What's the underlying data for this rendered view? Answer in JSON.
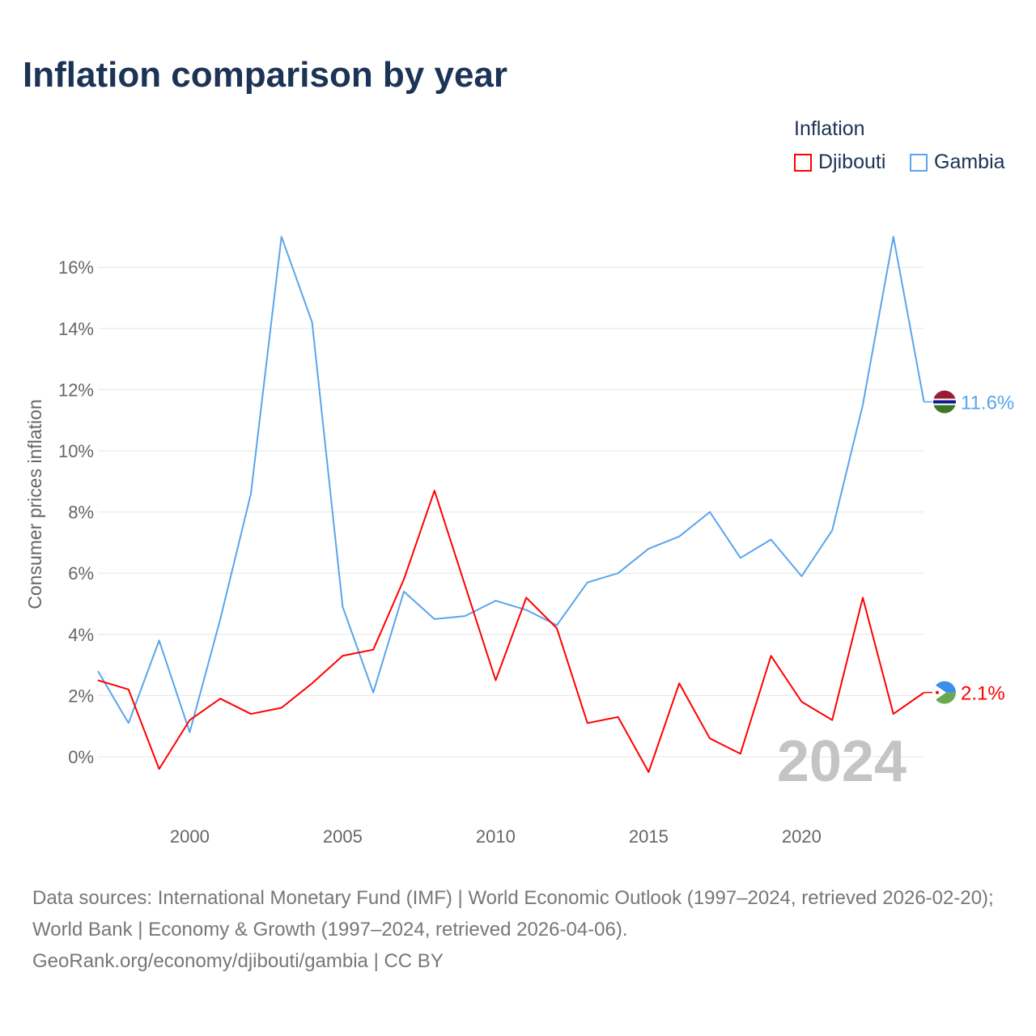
{
  "title": "Inflation comparison by year",
  "legend": {
    "title": "Inflation",
    "items": [
      {
        "name": "Djibouti",
        "color": "#ff0000"
      },
      {
        "name": "Gambia",
        "color": "#5aa5ec"
      }
    ]
  },
  "year_label": "2024",
  "end_labels": {
    "Gambia": "11.6%",
    "Djibouti": "2.1%"
  },
  "footer": {
    "sources": "Data sources: International Monetary Fund (IMF) | World Economic Outlook (1997–2024, retrieved 2026-02-20); World Bank | Economy & Growth (1997–2024, retrieved 2026-04-06).",
    "credit": "GeoRank.org/economy/djibouti/gambia | CC BY"
  },
  "chart_data": {
    "type": "line",
    "title": "Inflation comparison by year",
    "xlabel": "",
    "ylabel": "Consumer prices inflation",
    "x": [
      1997,
      1998,
      1999,
      2000,
      2001,
      2002,
      2003,
      2004,
      2005,
      2006,
      2007,
      2008,
      2009,
      2010,
      2011,
      2012,
      2013,
      2014,
      2015,
      2016,
      2017,
      2018,
      2019,
      2020,
      2021,
      2022,
      2023,
      2024
    ],
    "xticks": [
      2000,
      2005,
      2010,
      2015,
      2020
    ],
    "yticks": [
      0,
      2,
      4,
      6,
      8,
      10,
      12,
      14,
      16
    ],
    "ytick_labels": [
      "0%",
      "2%",
      "4%",
      "6%",
      "8%",
      "10%",
      "12%",
      "14%",
      "16%"
    ],
    "ylim": [
      -2,
      17.5
    ],
    "xlim": [
      1997,
      2024
    ],
    "grid": true,
    "legend_position": "top-right",
    "series": [
      {
        "name": "Djibouti",
        "color": "#ff0000",
        "values": [
          2.5,
          2.2,
          -0.4,
          1.2,
          1.9,
          1.4,
          1.6,
          2.4,
          3.3,
          3.5,
          5.8,
          8.7,
          5.6,
          2.5,
          5.2,
          4.2,
          1.1,
          1.3,
          -0.5,
          2.4,
          0.6,
          0.1,
          3.3,
          1.8,
          1.2,
          5.2,
          1.4,
          2.1
        ]
      },
      {
        "name": "Gambia",
        "color": "#5aa5ec",
        "values": [
          2.8,
          1.1,
          3.8,
          0.8,
          4.5,
          8.6,
          17.0,
          14.2,
          4.9,
          2.1,
          5.4,
          4.5,
          4.6,
          5.1,
          4.8,
          4.3,
          5.7,
          6.0,
          6.8,
          7.2,
          8.0,
          6.5,
          7.1,
          5.9,
          7.4,
          11.5,
          17.0,
          11.6
        ]
      }
    ]
  }
}
